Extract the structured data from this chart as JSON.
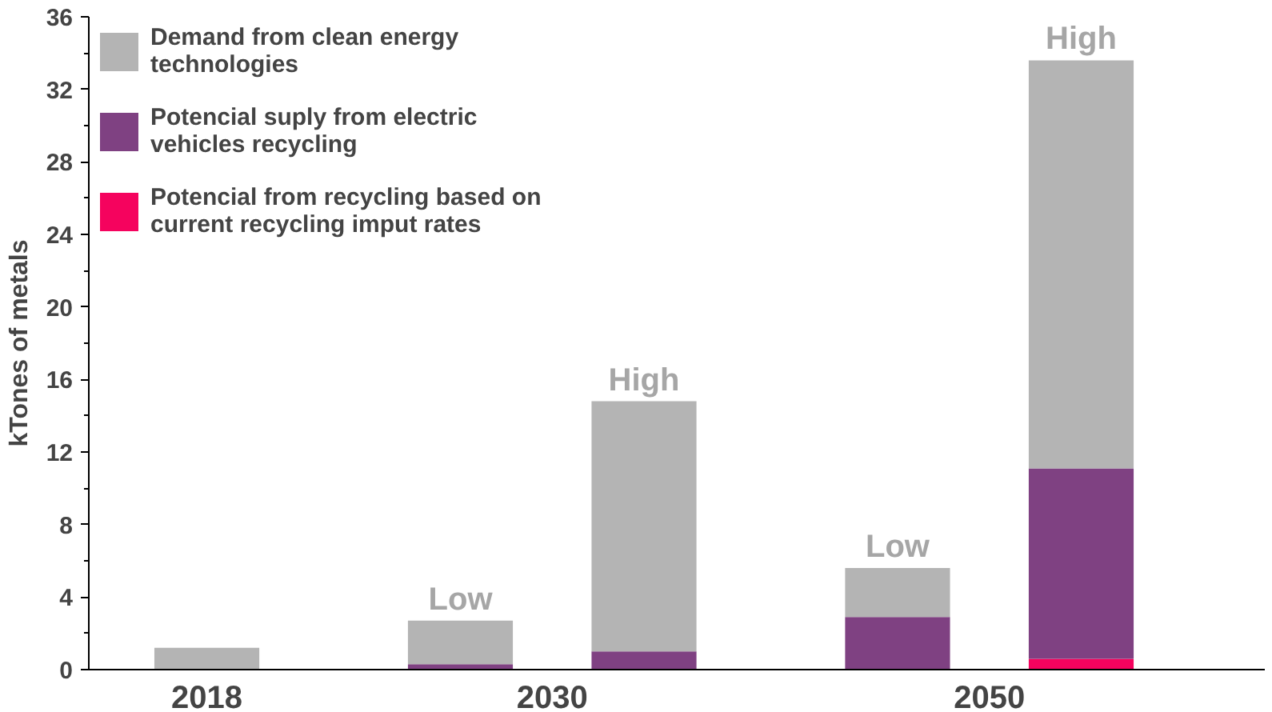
{
  "chart_data": {
    "type": "bar",
    "stacked": true,
    "ylabel": "kTones of metals",
    "categories": [
      "2018",
      null,
      null,
      null,
      null
    ],
    "ylim": [
      0,
      36
    ],
    "yticks": [
      0,
      4,
      8,
      12,
      16,
      20,
      24,
      28,
      32,
      36
    ],
    "series": [
      {
        "name": "Potencial from recycling based on current recycling imput rates",
        "color": "#f5035e",
        "values": [
          0,
          0,
          0,
          0,
          0.6
        ]
      },
      {
        "name": "Potencial suply from electric vehicles recycling",
        "color": "#7f4182",
        "values": [
          0,
          0.3,
          1.0,
          2.9,
          10.5
        ]
      },
      {
        "name": "Demand from clean energy technologies",
        "color": "#b4b4b4",
        "values": [
          1.2,
          2.4,
          13.8,
          2.7,
          22.5
        ]
      }
    ],
    "annotations": [
      {
        "text": "Low",
        "y": 2.7
      },
      {
        "text": "High",
        "y": 14.8
      },
      {
        "text": "Low",
        "y": 5.6
      },
      {
        "text": "High",
        "y": 33.6
      },
      "2030",
      "2050"
    ],
    "grid": false,
    "legend": "top left"
  }
}
